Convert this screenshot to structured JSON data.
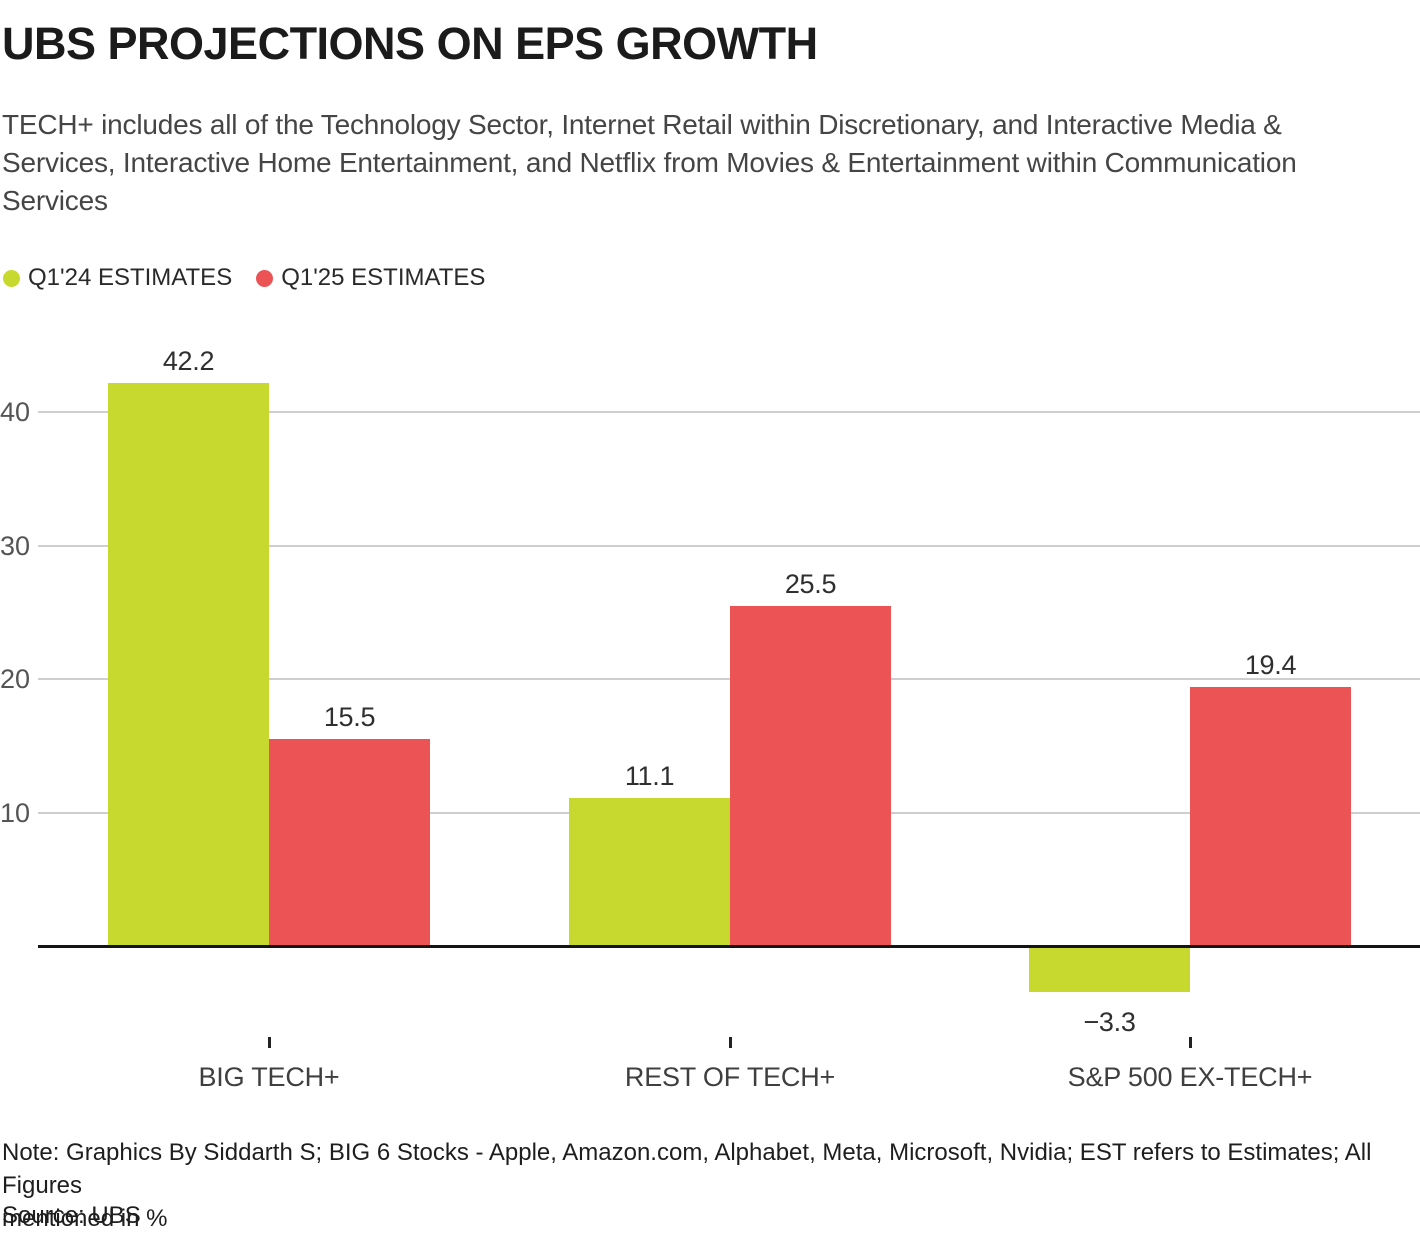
{
  "title": "UBS PROJECTIONS ON EPS GROWTH",
  "subtitle": {
    "lines": [
      "TECH+ includes all of the Technology Sector, Internet Retail within Discretionary, and Interactive Media &",
      "Services, Interactive Home Entertainment, and Netflix from Movies & Entertainment within Communication",
      "Services"
    ]
  },
  "legend": [
    {
      "label": "Q1'24 ESTIMATES",
      "color": "#c7d92e"
    },
    {
      "label": "Q1'25 ESTIMATES",
      "color": "#ec5355"
    }
  ],
  "chart_data": {
    "type": "bar",
    "categories": [
      "BIG TECH+",
      "REST OF TECH+",
      "S&P 500 EX-TECH+"
    ],
    "series": [
      {
        "name": "Q1'24 ESTIMATES",
        "color": "#c7d92e",
        "values": [
          42.2,
          11.1,
          -3.3
        ]
      },
      {
        "name": "Q1'25 ESTIMATES",
        "color": "#ec5355",
        "values": [
          15.5,
          25.5,
          19.4
        ]
      }
    ],
    "value_labels": [
      [
        "42.2",
        "15.5"
      ],
      [
        "11.1",
        "25.5"
      ],
      [
        "−3.3",
        "19.4"
      ]
    ],
    "yticks": [
      10,
      20,
      30,
      40
    ],
    "ylim": [
      -8,
      45
    ],
    "grid": "horizontal",
    "legend_position": "top-left",
    "unit": "%",
    "gridline_color": "#cecece",
    "baseline_color": "#141414"
  },
  "note": {
    "lines": [
      "Note: Graphics By Siddarth S; BIG 6 Stocks - Apple, Amazon.com, Alphabet, Meta, Microsoft, Nvidia; EST refers to Estimates; All Figures",
      "mentioned in %"
    ]
  },
  "source": "Source: UBS"
}
